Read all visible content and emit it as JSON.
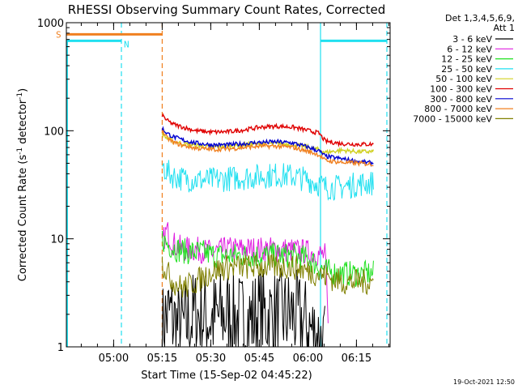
{
  "chart_data": {
    "type": "line",
    "title": "RHESSI Observing Summary Count Rates, Corrected",
    "xlabel": "Start Time (15-Sep-02 04:45:22)",
    "ylabel_main": "Corrected Count Rate (s",
    "ylabel_sup1": "-1",
    "ylabel_mid": " detector",
    "ylabel_sup2": "-1",
    "ylabel_end": ")",
    "y_scale": "log",
    "ylim": [
      1,
      1000
    ],
    "xlim_minutes": [
      0,
      100
    ],
    "x_ticks": [
      {
        "min": 14.6,
        "label": "05:00"
      },
      {
        "min": 29.6,
        "label": "05:15"
      },
      {
        "min": 44.6,
        "label": "05:30"
      },
      {
        "min": 59.6,
        "label": "05:45"
      },
      {
        "min": 74.6,
        "label": "06:00"
      },
      {
        "min": 89.6,
        "label": "06:15"
      }
    ],
    "y_ticks": [
      {
        "v": 1,
        "label": "1"
      },
      {
        "v": 10,
        "label": "10"
      },
      {
        "v": 100,
        "label": "100"
      },
      {
        "v": 1000,
        "label": "1000"
      }
    ],
    "legend": {
      "placement": "top-right-outside",
      "header1": "Det 1,3,4,5,6,9,",
      "header2": "Att 1",
      "entries": [
        {
          "name": "3 - 6 keV",
          "color": "#000000"
        },
        {
          "name": "6 - 12 keV",
          "color": "#e020e0"
        },
        {
          "name": "12 - 25 keV",
          "color": "#20e020"
        },
        {
          "name": "25 - 50 keV",
          "color": "#20e0f0"
        },
        {
          "name": "50 - 100 keV",
          "color": "#d0d020"
        },
        {
          "name": "100 - 300 keV",
          "color": "#e00000"
        },
        {
          "name": "300 - 800 keV",
          "color": "#0000d0"
        },
        {
          "name": "800 - 7000 keV",
          "color": "#f08020"
        },
        {
          "name": "7000 - 15000 keV",
          "color": "#808000"
        }
      ]
    },
    "series": [
      {
        "name": "3 - 6 keV",
        "color": "#000000",
        "style": "noisy",
        "points": [
          [
            29.6,
            1
          ],
          [
            30,
            1.8
          ],
          [
            32,
            2
          ],
          [
            35,
            1.4
          ],
          [
            40,
            2
          ],
          [
            45,
            1.8
          ],
          [
            50,
            2
          ],
          [
            55,
            1.7
          ],
          [
            60,
            2
          ],
          [
            65,
            1.9
          ],
          [
            70,
            2
          ],
          [
            75,
            1.5
          ],
          [
            80,
            1
          ]
        ]
      },
      {
        "name": "6 - 12 keV",
        "color": "#e020e0",
        "style": "noisy",
        "points": [
          [
            29.6,
            9
          ],
          [
            31,
            12
          ],
          [
            33,
            9
          ],
          [
            36,
            8
          ],
          [
            40,
            8
          ],
          [
            45,
            7.5
          ],
          [
            50,
            8
          ],
          [
            55,
            8
          ],
          [
            60,
            8
          ],
          [
            65,
            8
          ],
          [
            70,
            7.8
          ],
          [
            75,
            7.5
          ],
          [
            80,
            7
          ],
          [
            81,
            1.2
          ]
        ]
      },
      {
        "name": "12 - 25 keV",
        "color": "#20e020",
        "style": "noisy",
        "points": [
          [
            29.6,
            10
          ],
          [
            31,
            9
          ],
          [
            34,
            8
          ],
          [
            38,
            7.5
          ],
          [
            42,
            7.5
          ],
          [
            46,
            7
          ],
          [
            50,
            7
          ],
          [
            55,
            7
          ],
          [
            60,
            7
          ],
          [
            65,
            7
          ],
          [
            70,
            7
          ],
          [
            75,
            6.5
          ],
          [
            80,
            5
          ],
          [
            85,
            4.8
          ],
          [
            90,
            4.7
          ],
          [
            95,
            4.8
          ]
        ]
      },
      {
        "name": "25 - 50 keV",
        "color": "#20e0f0",
        "style": "noisy",
        "points": [
          [
            29.6,
            48
          ],
          [
            31,
            42
          ],
          [
            33,
            38
          ],
          [
            36,
            36
          ],
          [
            40,
            35
          ],
          [
            45,
            35
          ],
          [
            50,
            36
          ],
          [
            55,
            37
          ],
          [
            60,
            38
          ],
          [
            65,
            39
          ],
          [
            70,
            38
          ],
          [
            75,
            35
          ],
          [
            78,
            32
          ],
          [
            80,
            30
          ],
          [
            85,
            30
          ],
          [
            90,
            32
          ],
          [
            95,
            33
          ]
        ]
      },
      {
        "name": "50 - 100 keV",
        "color": "#d0d020",
        "style": "smooth",
        "points": [
          [
            29.6,
            95
          ],
          [
            31,
            85
          ],
          [
            33,
            80
          ],
          [
            36,
            76
          ],
          [
            40,
            73
          ],
          [
            45,
            71
          ],
          [
            50,
            72
          ],
          [
            55,
            74
          ],
          [
            60,
            76
          ],
          [
            65,
            76
          ],
          [
            70,
            75
          ],
          [
            75,
            70
          ],
          [
            78,
            67
          ],
          [
            80,
            63
          ],
          [
            85,
            66
          ],
          [
            90,
            64
          ],
          [
            95,
            64
          ]
        ]
      },
      {
        "name": "100 - 300 keV",
        "color": "#e00000",
        "style": "smooth",
        "points": [
          [
            29.6,
            140
          ],
          [
            31,
            125
          ],
          [
            33,
            115
          ],
          [
            36,
            108
          ],
          [
            40,
            100
          ],
          [
            45,
            97
          ],
          [
            50,
            98
          ],
          [
            55,
            102
          ],
          [
            60,
            108
          ],
          [
            65,
            110
          ],
          [
            70,
            108
          ],
          [
            75,
            100
          ],
          [
            78,
            95
          ],
          [
            80,
            80
          ],
          [
            85,
            76
          ],
          [
            90,
            75
          ],
          [
            95,
            75
          ]
        ]
      },
      {
        "name": "300 - 800 keV",
        "color": "#0000d0",
        "style": "smooth",
        "points": [
          [
            29.6,
            105
          ],
          [
            31,
            95
          ],
          [
            33,
            88
          ],
          [
            36,
            82
          ],
          [
            40,
            77
          ],
          [
            45,
            74
          ],
          [
            50,
            74
          ],
          [
            55,
            76
          ],
          [
            60,
            78
          ],
          [
            65,
            79
          ],
          [
            70,
            77
          ],
          [
            75,
            70
          ],
          [
            78,
            65
          ],
          [
            80,
            58
          ],
          [
            85,
            55
          ],
          [
            90,
            52
          ],
          [
            95,
            50
          ]
        ]
      },
      {
        "name": "800 - 7000 keV",
        "color": "#f08020",
        "style": "smooth",
        "points": [
          [
            29.6,
            100
          ],
          [
            31,
            86
          ],
          [
            33,
            78
          ],
          [
            36,
            73
          ],
          [
            40,
            69
          ],
          [
            45,
            67
          ],
          [
            50,
            68
          ],
          [
            55,
            70
          ],
          [
            60,
            72
          ],
          [
            65,
            72
          ],
          [
            70,
            70
          ],
          [
            75,
            64
          ],
          [
            78,
            60
          ],
          [
            80,
            53
          ],
          [
            85,
            51
          ],
          [
            90,
            50
          ],
          [
            95,
            49
          ]
        ]
      },
      {
        "name": "7000 - 15000 keV",
        "color": "#808000",
        "style": "noisy",
        "points": [
          [
            29.6,
            6
          ],
          [
            31,
            5
          ],
          [
            33,
            4
          ],
          [
            36,
            3.5
          ],
          [
            40,
            4
          ],
          [
            45,
            5
          ],
          [
            50,
            5.5
          ],
          [
            55,
            5.5
          ],
          [
            60,
            5.5
          ],
          [
            65,
            5.5
          ],
          [
            70,
            5.5
          ],
          [
            75,
            5
          ],
          [
            80,
            4.5
          ],
          [
            85,
            4
          ],
          [
            90,
            4
          ],
          [
            95,
            4
          ]
        ]
      }
    ],
    "flag_lines": [
      {
        "label": "S",
        "color": "#f08020",
        "y": 780,
        "x_start": 0,
        "x_end": 29.6
      },
      {
        "label": "N",
        "color": "#20e0f0",
        "y": 680,
        "x_start": 0,
        "x_end": 17,
        "x_start2": 78.5,
        "x_end2": 99
      }
    ],
    "vertical_markers": [
      {
        "min": 17,
        "color": "#20e0f0",
        "style": "dashed"
      },
      {
        "min": 29.6,
        "color": "#f08020",
        "style": "dashed"
      },
      {
        "min": 78.5,
        "color": "#20e0f0",
        "style": "solid"
      },
      {
        "min": 99,
        "color": "#20e0f0",
        "style": "dashed"
      }
    ],
    "timestamp": "19-Oct-2021 12:50"
  }
}
